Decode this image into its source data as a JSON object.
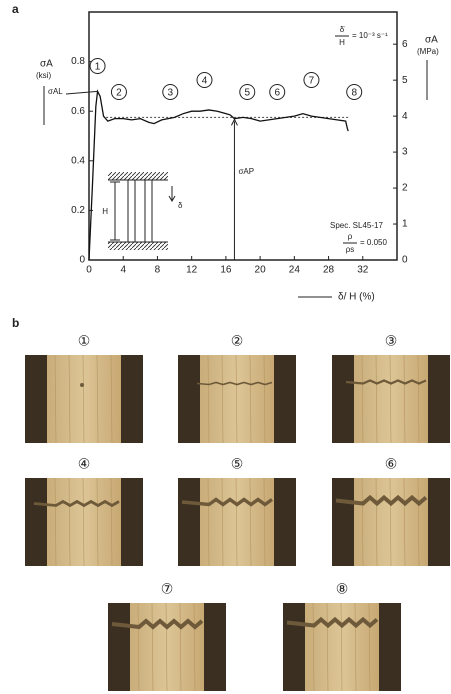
{
  "panel_labels": [
    "a",
    "b"
  ],
  "chart_data": {
    "type": "line",
    "x_label": "δ/ H (%)",
    "y_label": "σA",
    "y_unit": "(ksi)",
    "y2_label": "σA",
    "y2_unit": "(MPa)",
    "x": [
      0,
      0.4,
      0.8,
      1.0,
      1.3,
      1.7,
      2.2,
      3,
      4,
      5,
      6,
      7,
      7.6,
      8.5,
      10,
      11,
      12,
      13,
      14,
      15,
      16,
      16.5,
      17,
      18,
      19,
      20,
      21,
      22,
      23,
      24,
      25,
      26,
      27,
      28,
      29,
      30,
      30.2,
      30.3
    ],
    "series": [
      {
        "name": "σA",
        "color": "#111111",
        "values": [
          0,
          0.3,
          0.62,
          0.68,
          0.66,
          0.58,
          0.56,
          0.57,
          0.57,
          0.565,
          0.57,
          0.555,
          0.55,
          0.565,
          0.575,
          0.59,
          0.6,
          0.6,
          0.605,
          0.6,
          0.59,
          0.585,
          0.57,
          0.575,
          0.57,
          0.56,
          0.565,
          0.57,
          0.575,
          0.58,
          0.59,
          0.58,
          0.575,
          0.57,
          0.565,
          0.56,
          0.53,
          0.52
        ]
      }
    ],
    "xlim": [
      0,
      36
    ],
    "xticks": [
      0,
      4,
      8,
      12,
      16,
      20,
      24,
      28,
      32
    ],
    "ylim": [
      0,
      1
    ],
    "yticks": [
      0,
      0.2,
      0.4,
      0.6,
      0.8
    ],
    "y2lim": [
      0,
      6.895
    ],
    "y2ticks": [
      0,
      1,
      2,
      3,
      4,
      5,
      6
    ],
    "plateau_level": 0.575,
    "plateau_label": "σAP",
    "plateau_x": 17,
    "peak_label": "σAL",
    "stage_labels": [
      "1",
      "2",
      "3",
      "4",
      "5",
      "6",
      "7",
      "8"
    ],
    "stage_x": [
      1,
      3.5,
      9.5,
      13.5,
      18.5,
      22,
      26,
      31
    ],
    "rate": {
      "numerator": "δ̇",
      "denominator": "H",
      "value": "= 10⁻³ s⁻¹"
    },
    "specimen": "Spec. SL45-17",
    "density": {
      "numerator": "ρ",
      "denominator": "ρs",
      "value": "= 0.050"
    },
    "inset": {
      "height_label": "H",
      "disp_label": "δ"
    }
  },
  "photos": {
    "labels": [
      "①",
      "②",
      "③",
      "④",
      "⑤",
      "⑥",
      "⑦",
      "⑧"
    ]
  }
}
